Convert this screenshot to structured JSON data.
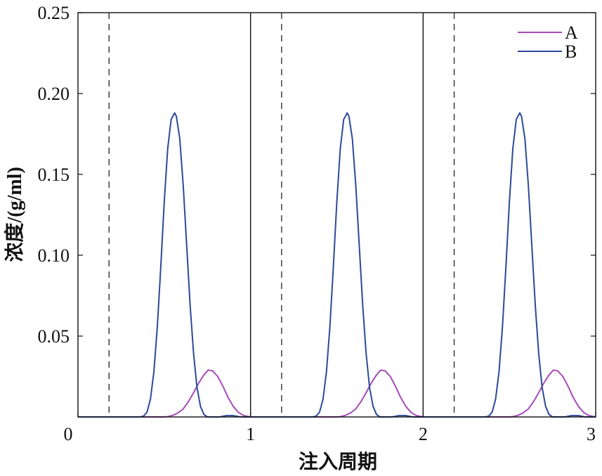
{
  "chart_data": {
    "type": "line",
    "title": "",
    "xlabel": "注入周期",
    "ylabel": "浓度/(g/ml)",
    "xlim": [
      0,
      3
    ],
    "ylim": [
      0,
      0.25
    ],
    "x_ticks": [
      "0",
      "1",
      "2",
      "3"
    ],
    "y_ticks": [
      "0.05",
      "0.10",
      "0.15",
      "0.20",
      "0.25"
    ],
    "y_tick_values": [
      0.05,
      0.1,
      0.15,
      0.2,
      0.25
    ],
    "x_tick_values": [
      0,
      1,
      2,
      3
    ],
    "grid": false,
    "legend_position": "top-right",
    "period_separators": [
      1,
      2
    ],
    "dashed_markers": [
      0.18,
      1.18,
      2.18
    ],
    "series": [
      {
        "name": "A",
        "color": "#a64ab8",
        "peak": 0.029,
        "points": [
          [
            0.0,
            0
          ],
          [
            0.5,
            0
          ],
          [
            0.52,
            0.0002
          ],
          [
            0.55,
            0.001
          ],
          [
            0.58,
            0.0025
          ],
          [
            0.61,
            0.005
          ],
          [
            0.64,
            0.0095
          ],
          [
            0.67,
            0.015
          ],
          [
            0.7,
            0.021
          ],
          [
            0.73,
            0.026
          ],
          [
            0.755,
            0.029
          ],
          [
            0.78,
            0.0285
          ],
          [
            0.81,
            0.025
          ],
          [
            0.84,
            0.019
          ],
          [
            0.87,
            0.012
          ],
          [
            0.9,
            0.0065
          ],
          [
            0.93,
            0.0028
          ],
          [
            0.96,
            0.0009
          ],
          [
            1.0,
            0
          ],
          [
            1.5,
            0
          ],
          [
            1.52,
            0.0002
          ],
          [
            1.55,
            0.001
          ],
          [
            1.58,
            0.0025
          ],
          [
            1.61,
            0.005
          ],
          [
            1.64,
            0.0095
          ],
          [
            1.67,
            0.015
          ],
          [
            1.7,
            0.021
          ],
          [
            1.73,
            0.026
          ],
          [
            1.755,
            0.029
          ],
          [
            1.78,
            0.0285
          ],
          [
            1.81,
            0.025
          ],
          [
            1.84,
            0.019
          ],
          [
            1.87,
            0.012
          ],
          [
            1.9,
            0.0065
          ],
          [
            1.93,
            0.0028
          ],
          [
            1.96,
            0.0009
          ],
          [
            2.0,
            0
          ],
          [
            2.5,
            0
          ],
          [
            2.52,
            0.0002
          ],
          [
            2.55,
            0.001
          ],
          [
            2.58,
            0.0025
          ],
          [
            2.61,
            0.005
          ],
          [
            2.64,
            0.0095
          ],
          [
            2.67,
            0.015
          ],
          [
            2.7,
            0.021
          ],
          [
            2.73,
            0.026
          ],
          [
            2.755,
            0.029
          ],
          [
            2.78,
            0.0285
          ],
          [
            2.81,
            0.025
          ],
          [
            2.84,
            0.019
          ],
          [
            2.87,
            0.012
          ],
          [
            2.9,
            0.0065
          ],
          [
            2.93,
            0.0028
          ],
          [
            2.96,
            0.0009
          ],
          [
            3.0,
            0
          ]
        ]
      },
      {
        "name": "B",
        "color": "#2b4a9a",
        "peak": 0.188,
        "points": [
          [
            0.0,
            0
          ],
          [
            0.36,
            0
          ],
          [
            0.38,
            0.0005
          ],
          [
            0.4,
            0.003
          ],
          [
            0.42,
            0.011
          ],
          [
            0.44,
            0.028
          ],
          [
            0.46,
            0.056
          ],
          [
            0.48,
            0.093
          ],
          [
            0.5,
            0.133
          ],
          [
            0.52,
            0.166
          ],
          [
            0.54,
            0.184
          ],
          [
            0.56,
            0.188
          ],
          [
            0.57,
            0.186
          ],
          [
            0.59,
            0.172
          ],
          [
            0.61,
            0.143
          ],
          [
            0.63,
            0.106
          ],
          [
            0.65,
            0.069
          ],
          [
            0.67,
            0.039
          ],
          [
            0.69,
            0.018
          ],
          [
            0.71,
            0.0065
          ],
          [
            0.73,
            0.0015
          ],
          [
            0.75,
            0
          ],
          [
            0.82,
            0
          ],
          [
            0.86,
            0.0008
          ],
          [
            0.9,
            0.0008
          ],
          [
            0.94,
            0
          ],
          [
            1.0,
            0
          ],
          [
            1.36,
            0
          ],
          [
            1.38,
            0.0005
          ],
          [
            1.4,
            0.003
          ],
          [
            1.42,
            0.011
          ],
          [
            1.44,
            0.028
          ],
          [
            1.46,
            0.056
          ],
          [
            1.48,
            0.093
          ],
          [
            1.5,
            0.133
          ],
          [
            1.52,
            0.166
          ],
          [
            1.54,
            0.184
          ],
          [
            1.56,
            0.188
          ],
          [
            1.57,
            0.186
          ],
          [
            1.59,
            0.172
          ],
          [
            1.61,
            0.143
          ],
          [
            1.63,
            0.106
          ],
          [
            1.65,
            0.069
          ],
          [
            1.67,
            0.039
          ],
          [
            1.69,
            0.018
          ],
          [
            1.71,
            0.0065
          ],
          [
            1.73,
            0.0015
          ],
          [
            1.75,
            0
          ],
          [
            1.82,
            0
          ],
          [
            1.86,
            0.0008
          ],
          [
            1.9,
            0.0008
          ],
          [
            1.94,
            0
          ],
          [
            2.0,
            0
          ],
          [
            2.36,
            0
          ],
          [
            2.38,
            0.0005
          ],
          [
            2.4,
            0.003
          ],
          [
            2.42,
            0.011
          ],
          [
            2.44,
            0.028
          ],
          [
            2.46,
            0.056
          ],
          [
            2.48,
            0.093
          ],
          [
            2.5,
            0.133
          ],
          [
            2.52,
            0.166
          ],
          [
            2.54,
            0.184
          ],
          [
            2.56,
            0.188
          ],
          [
            2.57,
            0.186
          ],
          [
            2.59,
            0.172
          ],
          [
            2.61,
            0.143
          ],
          [
            2.63,
            0.106
          ],
          [
            2.65,
            0.069
          ],
          [
            2.67,
            0.039
          ],
          [
            2.69,
            0.018
          ],
          [
            2.71,
            0.0065
          ],
          [
            2.73,
            0.0015
          ],
          [
            2.75,
            0
          ],
          [
            2.82,
            0
          ],
          [
            2.86,
            0.0008
          ],
          [
            2.9,
            0.0008
          ],
          [
            2.94,
            0
          ],
          [
            3.0,
            0
          ]
        ]
      }
    ]
  }
}
